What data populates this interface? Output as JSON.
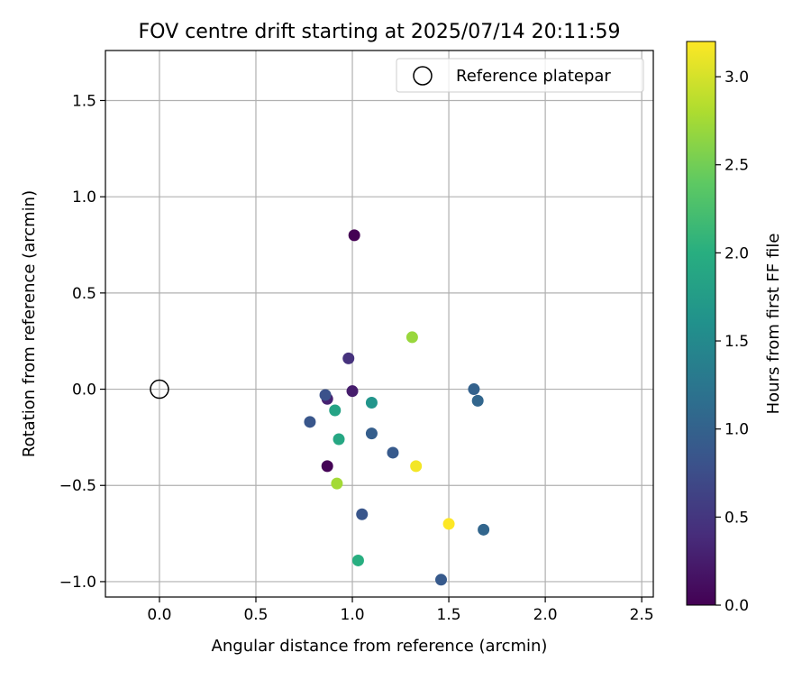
{
  "chart_data": {
    "type": "scatter",
    "title": "FOV centre drift starting at 2025/07/14 20:11:59",
    "xlabel": "Angular distance from reference (arcmin)",
    "ylabel": "Rotation from reference (arcmin)",
    "xlim": [
      -0.28,
      2.56
    ],
    "ylim": [
      -1.08,
      1.76
    ],
    "xticks": [
      0.0,
      0.5,
      1.0,
      1.5,
      2.0,
      2.5
    ],
    "xtick_labels": [
      "0.0",
      "0.5",
      "1.0",
      "1.5",
      "2.0",
      "2.5"
    ],
    "yticks": [
      -1.0,
      -0.5,
      0.0,
      0.5,
      1.0,
      1.5
    ],
    "ytick_labels": [
      "−1.0",
      "−0.5",
      "0.0",
      "0.5",
      "1.0",
      "1.5"
    ],
    "grid": true,
    "legend": {
      "placement": "upper-right",
      "entries": [
        {
          "label": "Reference platepar",
          "marker": "open-circle",
          "color": "#000000"
        }
      ]
    },
    "colorbar": {
      "label": "Hours from first FF file",
      "colormap": "viridis",
      "range": [
        0.0,
        3.2
      ],
      "ticks": [
        0.0,
        0.5,
        1.0,
        1.5,
        2.0,
        2.5,
        3.0
      ],
      "tick_labels": [
        "0.0",
        "0.5",
        "1.0",
        "1.5",
        "2.0",
        "2.5",
        "3.0"
      ]
    },
    "reference_point": {
      "x": 0.0,
      "y": 0.0
    },
    "series": [
      {
        "values": [
          {
            "x": 1.01,
            "y": 0.8,
            "hours": 0.0
          },
          {
            "x": 0.87,
            "y": -0.4,
            "hours": 0.02
          },
          {
            "x": 1.0,
            "y": -0.01,
            "hours": 0.25
          },
          {
            "x": 0.87,
            "y": -0.05,
            "hours": 0.3
          },
          {
            "x": 0.98,
            "y": 0.16,
            "hours": 0.45
          },
          {
            "x": 0.86,
            "y": -0.03,
            "hours": 0.8
          },
          {
            "x": 0.78,
            "y": -0.17,
            "hours": 0.85
          },
          {
            "x": 1.05,
            "y": -0.65,
            "hours": 0.85
          },
          {
            "x": 1.21,
            "y": -0.33,
            "hours": 0.9
          },
          {
            "x": 1.46,
            "y": -0.99,
            "hours": 0.9
          },
          {
            "x": 1.1,
            "y": -0.23,
            "hours": 0.95
          },
          {
            "x": 1.63,
            "y": 0.0,
            "hours": 1.0
          },
          {
            "x": 1.65,
            "y": -0.06,
            "hours": 1.05
          },
          {
            "x": 1.68,
            "y": -0.73,
            "hours": 1.05
          },
          {
            "x": 1.1,
            "y": -0.07,
            "hours": 1.65
          },
          {
            "x": 0.91,
            "y": -0.11,
            "hours": 1.85
          },
          {
            "x": 0.93,
            "y": -0.26,
            "hours": 1.9
          },
          {
            "x": 1.03,
            "y": -0.89,
            "hours": 2.0
          },
          {
            "x": 0.92,
            "y": -0.49,
            "hours": 2.75
          },
          {
            "x": 1.31,
            "y": 0.27,
            "hours": 2.7
          },
          {
            "x": 1.33,
            "y": -0.4,
            "hours": 3.15
          },
          {
            "x": 1.5,
            "y": -0.7,
            "hours": 3.2
          }
        ]
      }
    ]
  }
}
